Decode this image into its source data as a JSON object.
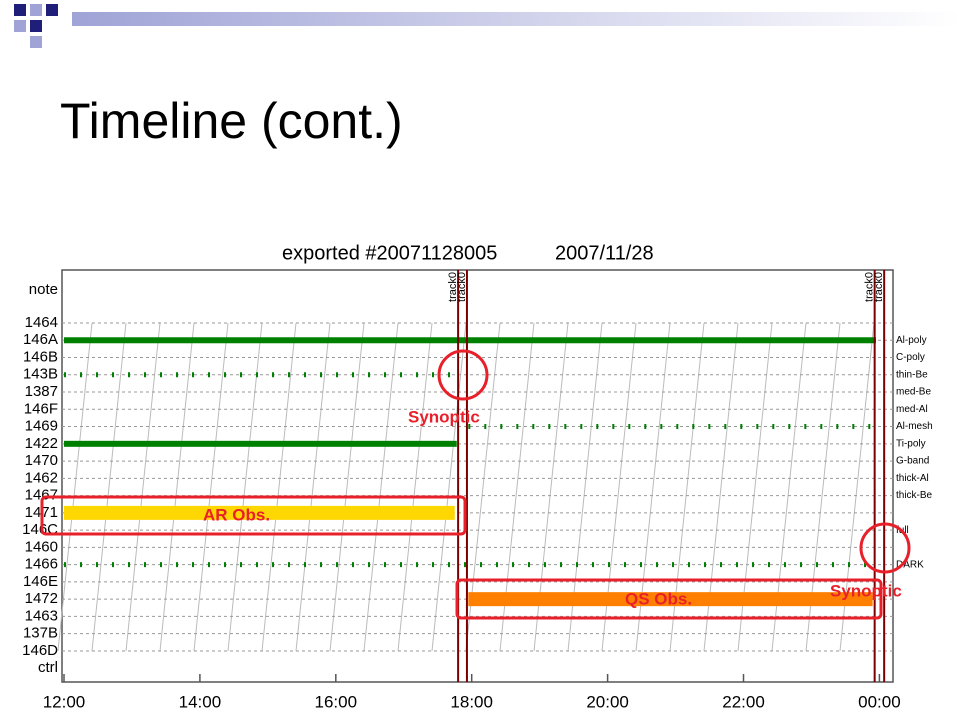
{
  "title": "Timeline (cont.)",
  "chart_data": {
    "type": "timeline",
    "title": "exported #20071128005",
    "subtitle": "2007/11/28",
    "rows": [
      "note",
      "1464",
      "146A",
      "146B",
      "143B",
      "1387",
      "146F",
      "1469",
      "1422",
      "1470",
      "1462",
      "1467",
      "1471",
      "146C",
      "1460",
      "1466",
      "146E",
      "1472",
      "1463",
      "137B",
      "146D",
      "ctrl"
    ],
    "right_labels": [
      {
        "row": "146A",
        "text": "Al-poly"
      },
      {
        "row": "146B",
        "text": "C-poly"
      },
      {
        "row": "143B",
        "text": "thin-Be"
      },
      {
        "row": "1387",
        "text": "med-Be"
      },
      {
        "row": "146F",
        "text": "med-Al"
      },
      {
        "row": "1469",
        "text": "Al-mesh"
      },
      {
        "row": "1422",
        "text": "Ti-poly"
      },
      {
        "row": "1470",
        "text": "G-band"
      },
      {
        "row": "1462",
        "text": "thick-Al"
      },
      {
        "row": "1467",
        "text": "thick-Be"
      },
      {
        "row": "146C",
        "text": "full"
      },
      {
        "row": "1466",
        "text": "DARK"
      }
    ],
    "xlim": [
      12,
      24.2
    ],
    "xticks": [
      {
        "value": 12,
        "label": "12:00"
      },
      {
        "value": 14,
        "label": "14:00"
      },
      {
        "value": 16,
        "label": "16:00"
      },
      {
        "value": 18,
        "label": "18:00"
      },
      {
        "value": 20,
        "label": "20:00"
      },
      {
        "value": 22,
        "label": "22:00"
      },
      {
        "value": 24,
        "label": "00:00"
      }
    ],
    "bars": [
      {
        "row": "146A",
        "start": 12,
        "end": 23.95,
        "color": "#008000",
        "style": "solid"
      },
      {
        "row": "1422",
        "start": 12,
        "end": 17.78,
        "color": "#008000",
        "style": "solid"
      },
      {
        "row": "1471",
        "start": 12,
        "end": 17.75,
        "color": "#ffd700",
        "style": "wide"
      },
      {
        "row": "1472",
        "start": 17.95,
        "end": 23.9,
        "color": "#ff8000",
        "style": "wide"
      },
      {
        "row": "143B",
        "start": 12,
        "end": 17.75,
        "color": "#008000",
        "style": "dashed"
      },
      {
        "row": "1469",
        "start": 17.95,
        "end": 24,
        "color": "#008000",
        "style": "dashed"
      },
      {
        "row": "1466",
        "start": 12,
        "end": 24,
        "color": "#008000",
        "style": "dashed"
      }
    ],
    "events": [
      {
        "time": 17.8,
        "label": "track0"
      },
      {
        "time": 17.93,
        "label": "track0"
      },
      {
        "time": 23.93,
        "label": "track0"
      },
      {
        "time": 24.07,
        "label": "track0"
      }
    ],
    "annotations": [
      "Synoptic",
      "AR Obs.",
      "QS Obs.",
      "Synoptic"
    ]
  }
}
